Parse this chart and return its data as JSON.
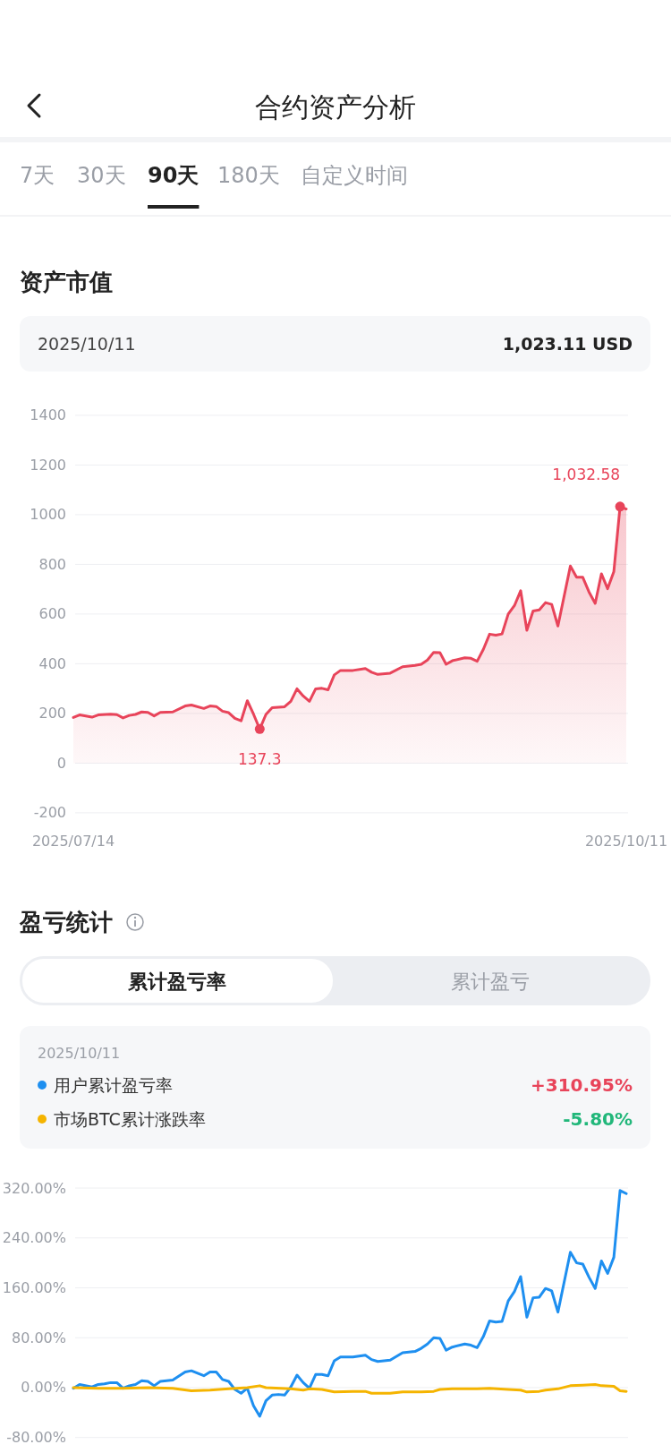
{
  "chart_data": [
    {
      "type": "other",
      "title": "合约资产分析",
      "annotations": [
        "7天",
        "30天",
        "90天",
        "180天",
        "自定义时间"
      ]
    },
    {
      "type": "area",
      "title": "资产市值",
      "annotations": [
        "2025/10/11",
        "1,023.11 USD"
      ],
      "x": [
        "2025-07-14",
        "2025-07-15",
        "2025-07-17",
        "2025-07-18",
        "2025-07-20",
        "2025-07-21",
        "2025-07-22",
        "2025-07-23",
        "2025-07-24",
        "2025-07-25",
        "2025-07-26",
        "2025-07-27",
        "2025-07-28",
        "2025-07-30",
        "2025-08-01",
        "2025-08-02",
        "2025-08-04",
        "2025-08-05",
        "2025-08-06",
        "2025-08-07",
        "2025-08-08",
        "2025-08-09",
        "2025-08-10",
        "2025-08-11",
        "2025-08-12",
        "2025-08-13",
        "2025-08-14",
        "2025-08-15",
        "2025-08-17",
        "2025-08-18",
        "2025-08-19",
        "2025-08-20",
        "2025-08-21",
        "2025-08-22",
        "2025-08-23",
        "2025-08-24",
        "2025-08-25",
        "2025-08-26",
        "2025-08-28",
        "2025-08-30",
        "2025-08-31",
        "2025-09-01",
        "2025-09-03",
        "2025-09-05",
        "2025-09-07",
        "2025-09-08",
        "2025-09-09",
        "2025-09-10",
        "2025-09-11",
        "2025-09-12",
        "2025-09-13",
        "2025-09-15",
        "2025-09-16",
        "2025-09-17",
        "2025-09-18",
        "2025-09-19",
        "2025-09-20",
        "2025-09-21",
        "2025-09-22",
        "2025-09-23",
        "2025-09-24",
        "2025-09-25",
        "2025-09-26",
        "2025-09-27",
        "2025-09-28",
        "2025-09-29",
        "2025-09-30",
        "2025-10-02",
        "2025-10-03",
        "2025-10-04",
        "2025-10-05",
        "2025-10-06",
        "2025-10-07",
        "2025-10-08",
        "2025-10-09",
        "2025-10-10",
        "2025-10-11"
      ],
      "series": [
        {
          "color": "#e8445a",
          "values": [
            184,
            194,
            185,
            194,
            197,
            195,
            182,
            192,
            196,
            206,
            204,
            190,
            204,
            206,
            230,
            234,
            220,
            230,
            228,
            209,
            203,
            180,
            170,
            251,
            197,
            137.3,
            196,
            223,
            227,
            249,
            299,
            270,
            249,
            299,
            301,
            295,
            355,
            373,
            373,
            381,
            366,
            357,
            362,
            388,
            393,
            398,
            415,
            446,
            445,
            398,
            412,
            424,
            422,
            410,
            458,
            519,
            515,
            520,
            600,
            634,
            694,
            535,
            612,
            617,
            646,
            639,
            552,
            793,
            748,
            748,
            689,
            643,
            762,
            702,
            771,
            1033,
            1023
          ]
        },
        {
          "type": "scatter",
          "color": "#e8445a",
          "x": [
            "2025-08-13",
            "2025-10-10"
          ],
          "values": [
            137.3,
            1032.58
          ],
          "value_labels": [
            "137.3",
            "1,032.58"
          ]
        }
      ],
      "xlim": [
        "2025-07-14",
        "2025-10-11"
      ],
      "xticks": [
        {
          "value": "2025-07-14",
          "label": "2025/07/14"
        },
        {
          "value": "2025-10-11",
          "label": "2025/10/11"
        }
      ],
      "ylim": [
        -200,
        1400
      ],
      "yticks": [
        -200,
        0,
        200,
        400,
        600,
        800,
        1000,
        1200,
        1400
      ],
      "grid": "y"
    },
    {
      "type": "line",
      "title": "盈亏统计",
      "annotations": [
        "累计盈亏率",
        "累计盈亏",
        "2025/10/11",
        "+310.95%",
        "-5.80%"
      ],
      "xlim": [
        "2025-07-14",
        "2025-10-11"
      ],
      "ylim": [
        -80,
        320
      ],
      "yticks": [
        {
          "value": -80,
          "label": "-80.00%"
        },
        {
          "value": 0,
          "label": "0.00%"
        },
        {
          "value": 80,
          "label": "80.00%"
        },
        {
          "value": 160,
          "label": "160.00%"
        },
        {
          "value": 240,
          "label": "240.00%"
        },
        {
          "value": 320,
          "label": "320.00%"
        }
      ],
      "grid": "y",
      "legend": "top",
      "tick_labels": "y",
      "series": [
        {
          "name": "用户累计盈亏率",
          "color": "#1e8ff0",
          "x": [
            "2025-07-14",
            "2025-07-15",
            "2025-07-17",
            "2025-07-18",
            "2025-07-19",
            "2025-07-20",
            "2025-07-21",
            "2025-07-22",
            "2025-07-23",
            "2025-07-24",
            "2025-07-25",
            "2025-07-26",
            "2025-07-27",
            "2025-07-28",
            "2025-07-30",
            "2025-08-01",
            "2025-08-02",
            "2025-08-04",
            "2025-08-05",
            "2025-08-06",
            "2025-08-07",
            "2025-08-08",
            "2025-08-09",
            "2025-08-10",
            "2025-08-11",
            "2025-08-12",
            "2025-08-13",
            "2025-08-14",
            "2025-08-15",
            "2025-08-16",
            "2025-08-17",
            "2025-08-18",
            "2025-08-19",
            "2025-08-20",
            "2025-08-21",
            "2025-08-22",
            "2025-08-23",
            "2025-08-24",
            "2025-08-25",
            "2025-08-26",
            "2025-08-28",
            "2025-08-30",
            "2025-08-31",
            "2025-09-01",
            "2025-09-03",
            "2025-09-05",
            "2025-09-07",
            "2025-09-08",
            "2025-09-09",
            "2025-09-10",
            "2025-09-11",
            "2025-09-12",
            "2025-09-13",
            "2025-09-15",
            "2025-09-16",
            "2025-09-17",
            "2025-09-18",
            "2025-09-19",
            "2025-09-20",
            "2025-09-21",
            "2025-09-22",
            "2025-09-23",
            "2025-09-24",
            "2025-09-25",
            "2025-09-26",
            "2025-09-27",
            "2025-09-28",
            "2025-09-29",
            "2025-09-30",
            "2025-10-02",
            "2025-10-03",
            "2025-10-04",
            "2025-10-05",
            "2025-10-06",
            "2025-10-07",
            "2025-10-08",
            "2025-10-09",
            "2025-10-10",
            "2025-10-11"
          ],
          "values": [
            -1,
            5,
            1,
            5,
            6,
            8,
            8,
            -1,
            3,
            5,
            11,
            10,
            3,
            10,
            12,
            25,
            27,
            19,
            25,
            25,
            13,
            10,
            -3,
            -9,
            -1,
            -29,
            -46,
            -21,
            -12,
            -11,
            -12,
            1,
            20,
            8,
            -1,
            21,
            21,
            19,
            43,
            49,
            49,
            52,
            45,
            42,
            44,
            56,
            58,
            63,
            70,
            80,
            79,
            60,
            65,
            70,
            68,
            64,
            82,
            107,
            105,
            106,
            139,
            154,
            178,
            113,
            144,
            145,
            159,
            155,
            121,
            217,
            200,
            198,
            177,
            159,
            203,
            183,
            209,
            316,
            311
          ]
        },
        {
          "name": "市场BTC累计涨跌率",
          "color": "#f5b400",
          "x": [
            "2025-07-14",
            "2025-07-18",
            "2025-07-22",
            "2025-07-26",
            "2025-07-30",
            "2025-08-02",
            "2025-08-05",
            "2025-08-08",
            "2025-08-11",
            "2025-08-13",
            "2025-08-14",
            "2025-08-18",
            "2025-08-20",
            "2025-08-21",
            "2025-08-23",
            "2025-08-25",
            "2025-08-28",
            "2025-08-30",
            "2025-08-31",
            "2025-09-03",
            "2025-09-05",
            "2025-09-08",
            "2025-09-10",
            "2025-09-11",
            "2025-09-13",
            "2025-09-17",
            "2025-09-19",
            "2025-09-22",
            "2025-09-24",
            "2025-09-25",
            "2025-09-27",
            "2025-09-28",
            "2025-09-29",
            "2025-09-30",
            "2025-10-02",
            "2025-10-04",
            "2025-10-06",
            "2025-10-07",
            "2025-10-09",
            "2025-10-10",
            "2025-10-11"
          ],
          "values": [
            0,
            -1,
            -1,
            0,
            -1,
            -5,
            -4,
            -2,
            0,
            3,
            0,
            -2,
            -4,
            -2,
            -3,
            -7,
            -6,
            -6,
            -9,
            -9,
            -7,
            -7,
            -6,
            -3,
            -2,
            -2,
            -1,
            -3,
            -4,
            -7,
            -6,
            -4,
            -3,
            -2,
            3,
            4,
            5,
            3,
            2,
            -5,
            -6
          ]
        }
      ]
    }
  ]
}
